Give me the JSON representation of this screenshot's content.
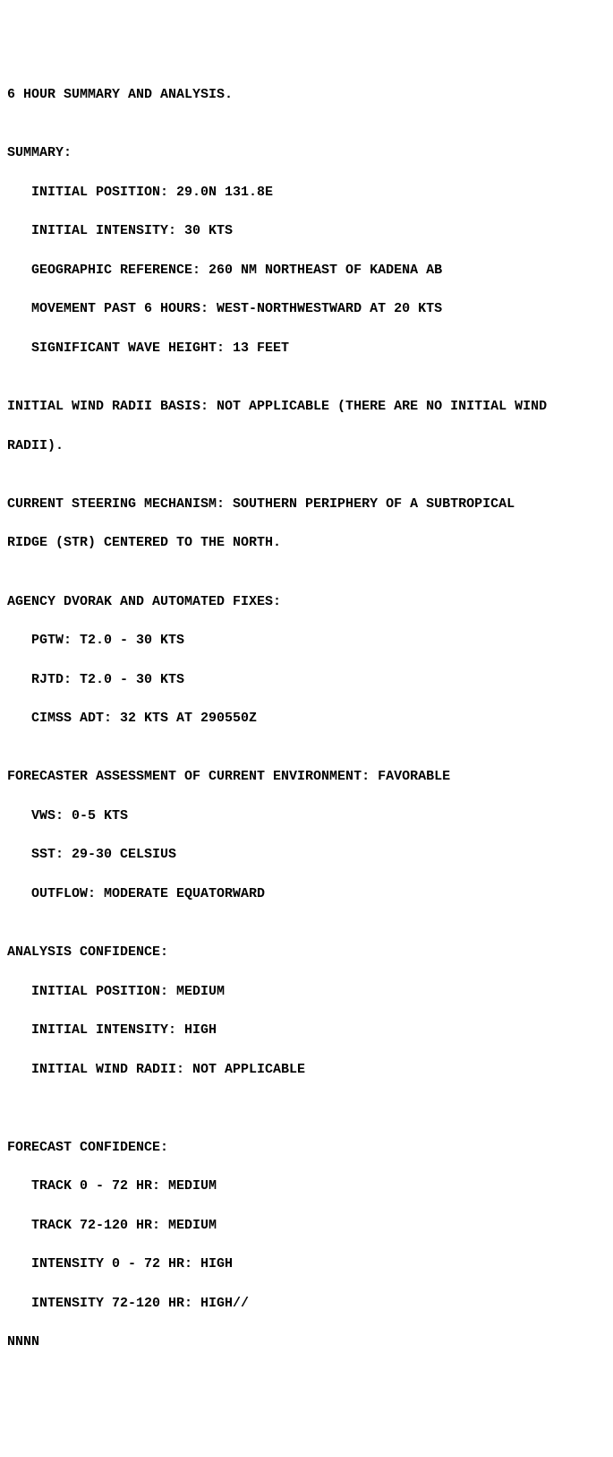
{
  "header": "6 HOUR SUMMARY AND ANALYSIS.",
  "blank": "",
  "summary_title": "SUMMARY:",
  "summary": {
    "pos": "   INITIAL POSITION: 29.0N 131.8E",
    "int": "   INITIAL INTENSITY: 30 KTS",
    "geo": "   GEOGRAPHIC REFERENCE: 260 NM NORTHEAST OF KADENA AB",
    "mov": "   MOVEMENT PAST 6 HOURS: WEST-NORTHWESTWARD AT 20 KTS",
    "wave": "   SIGNIFICANT WAVE HEIGHT: 13 FEET"
  },
  "wind_radii_l1": "INITIAL WIND RADII BASIS: NOT APPLICABLE (THERE ARE NO INITIAL WIND",
  "wind_radii_l2": "RADII).",
  "steering_l1": "CURRENT STEERING MECHANISM: SOUTHERN PERIPHERY OF A SUBTROPICAL",
  "steering_l2": "RIDGE (STR) CENTERED TO THE NORTH.",
  "fixes_title": "AGENCY DVORAK AND AUTOMATED FIXES:",
  "fixes": {
    "pgtw": "   PGTW: T2.0 - 30 KTS",
    "rjtd": "   RJTD: T2.0 - 30 KTS",
    "cimss": "   CIMSS ADT: 32 KTS AT 290550Z"
  },
  "env_title": "FORECASTER ASSESSMENT OF CURRENT ENVIRONMENT: FAVORABLE",
  "env": {
    "vws": "   VWS: 0-5 KTS",
    "sst": "   SST: 29-30 CELSIUS",
    "out": "   OUTFLOW: MODERATE EQUATORWARD"
  },
  "analysis_title": "ANALYSIS CONFIDENCE:",
  "analysis": {
    "pos": "   INITIAL POSITION: MEDIUM",
    "int": "   INITIAL INTENSITY: HIGH",
    "wr": "   INITIAL WIND RADII: NOT APPLICABLE"
  },
  "forecast_title": "FORECAST CONFIDENCE:",
  "forecast": {
    "t1": "   TRACK 0 - 72 HR: MEDIUM",
    "t2": "   TRACK 72-120 HR: MEDIUM",
    "i1": "   INTENSITY 0 - 72 HR: HIGH",
    "i2": "   INTENSITY 72-120 HR: HIGH//"
  },
  "footer": "NNNN"
}
